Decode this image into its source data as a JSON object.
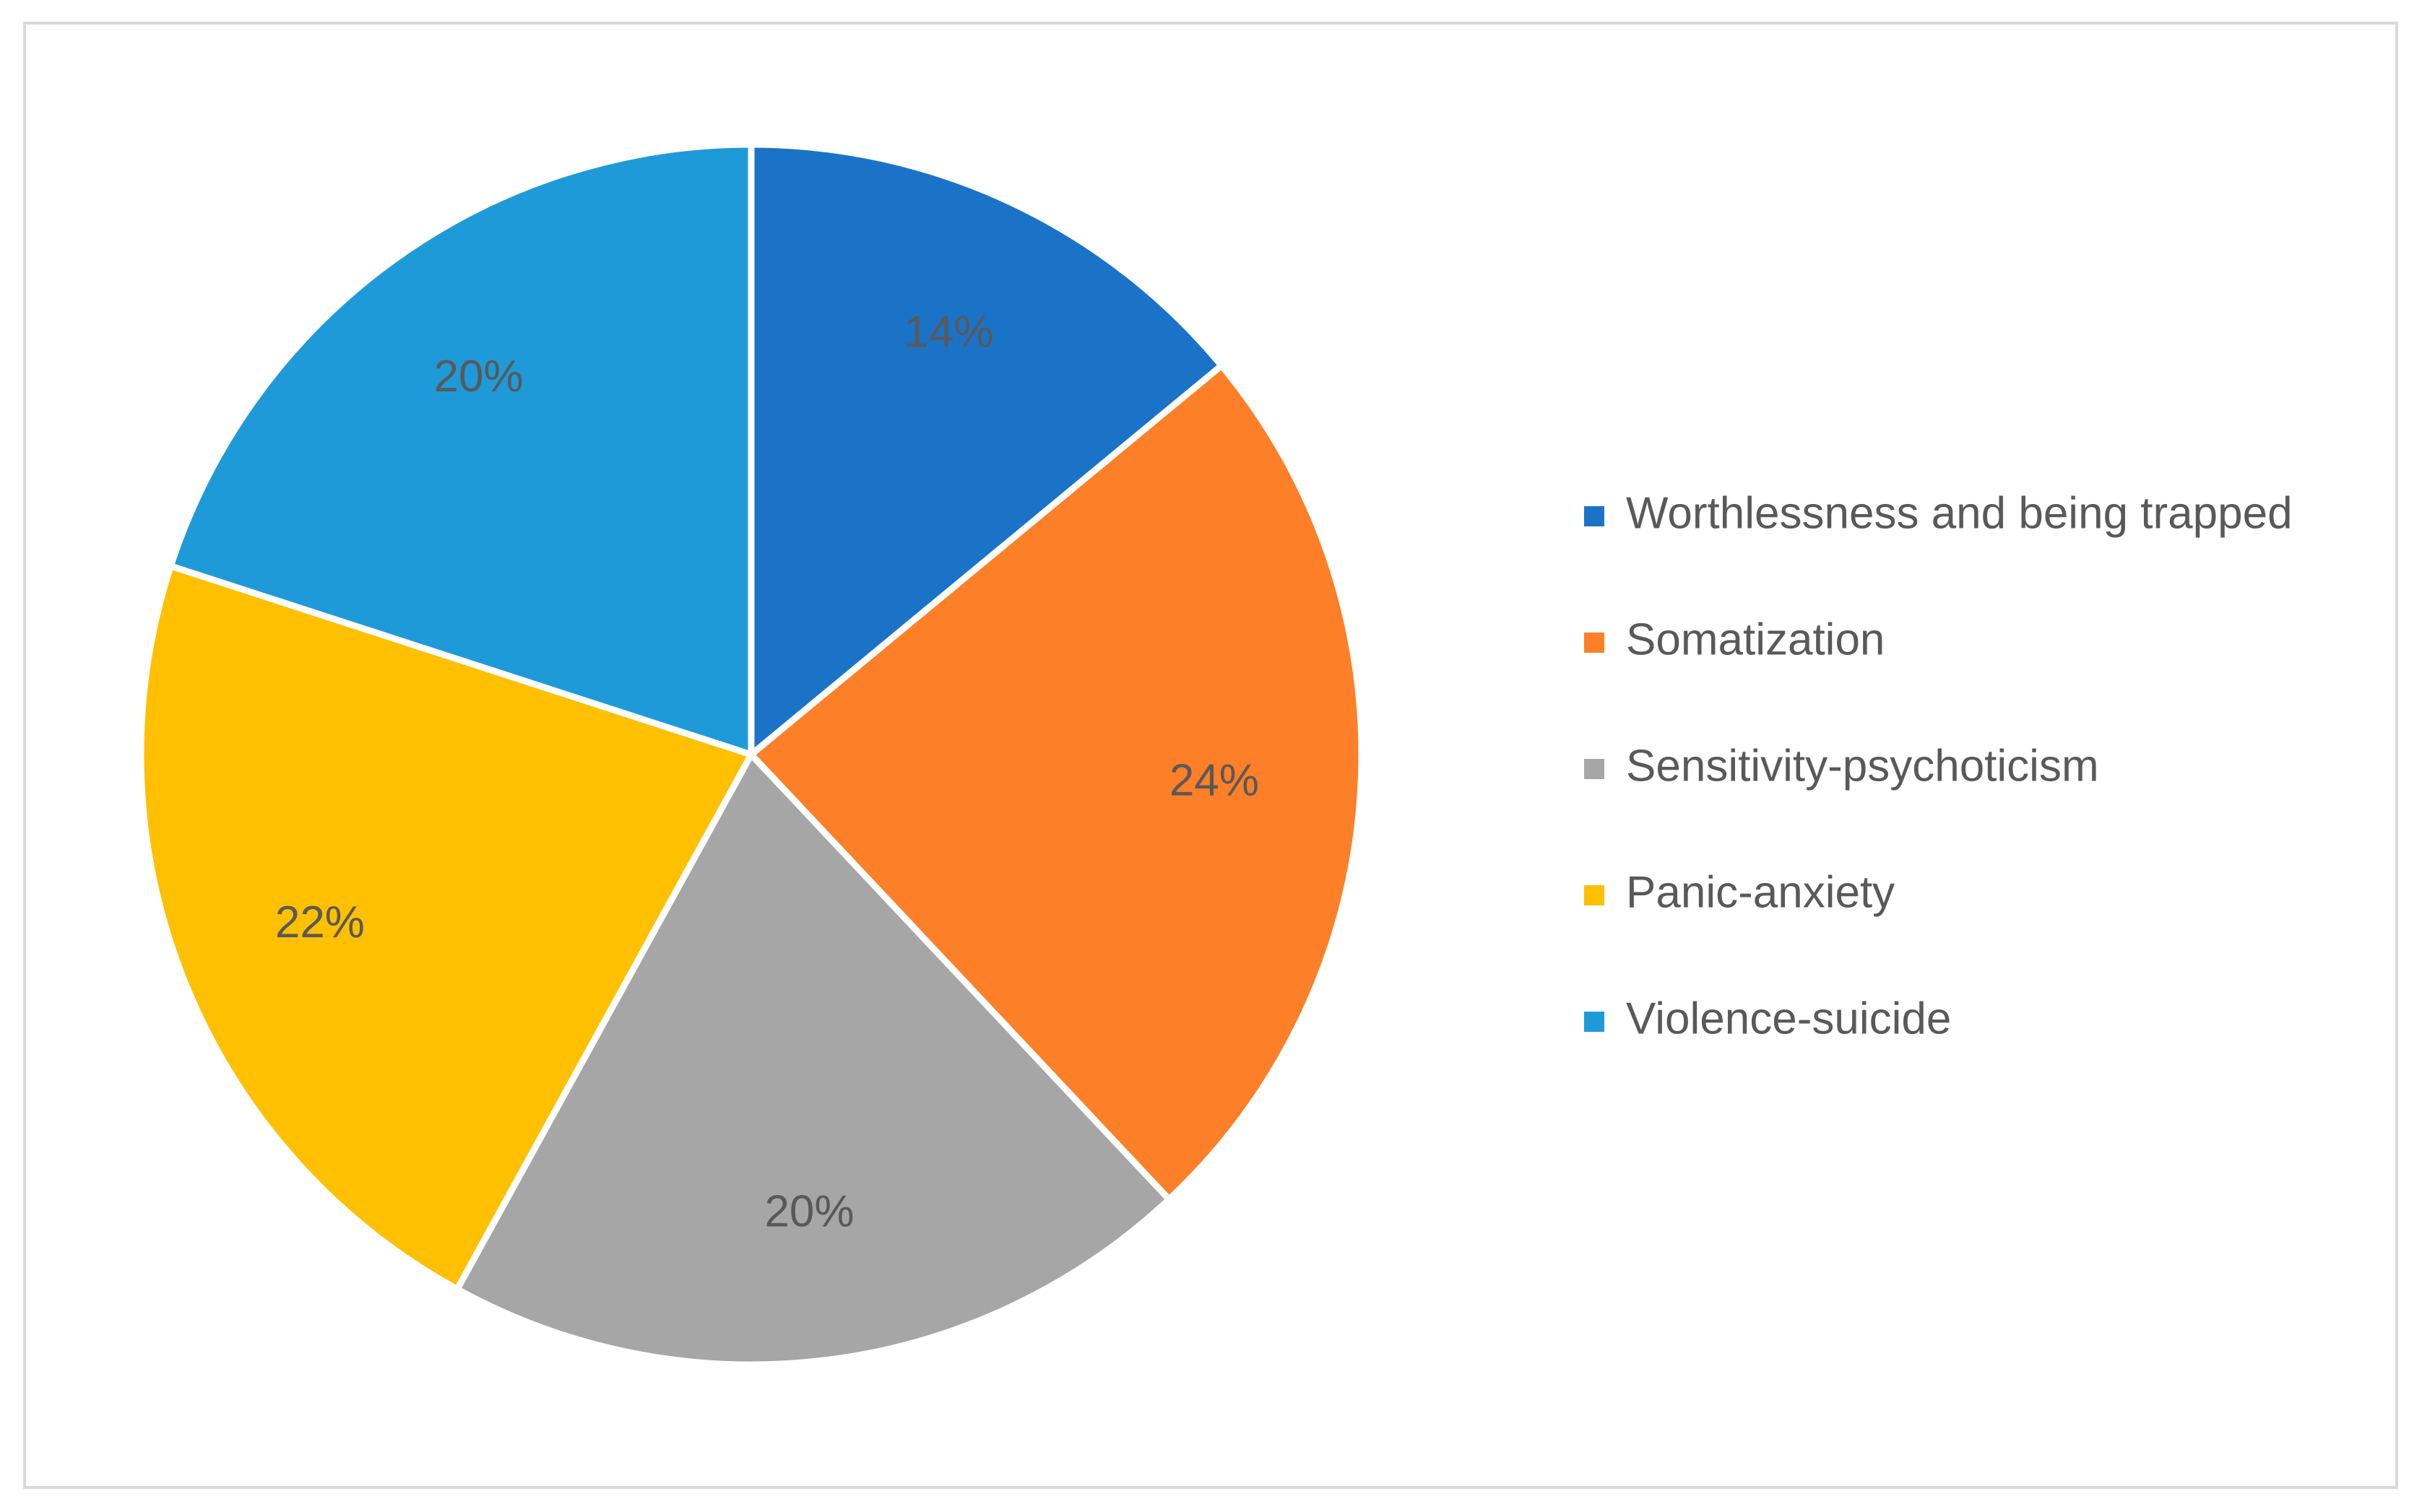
{
  "chart_data": {
    "type": "pie",
    "title": "",
    "legend_position": "right",
    "slices": [
      {
        "name": "Worthlessness and being trapped",
        "value": 14,
        "label": "14%",
        "color": "#1a73c7"
      },
      {
        "name": "Somatization",
        "value": 24,
        "label": "24%",
        "color": "#fd7f27"
      },
      {
        "name": "Sensitivity-psychoticism",
        "value": 20,
        "label": "20%",
        "color": "#a6a6a6"
      },
      {
        "name": "Panic-anxiety",
        "value": 22,
        "label": "22%",
        "color": "#fec000"
      },
      {
        "name": "Violence-suicide",
        "value": 20,
        "label": "20%",
        "color": "#1f9ad8"
      }
    ]
  }
}
